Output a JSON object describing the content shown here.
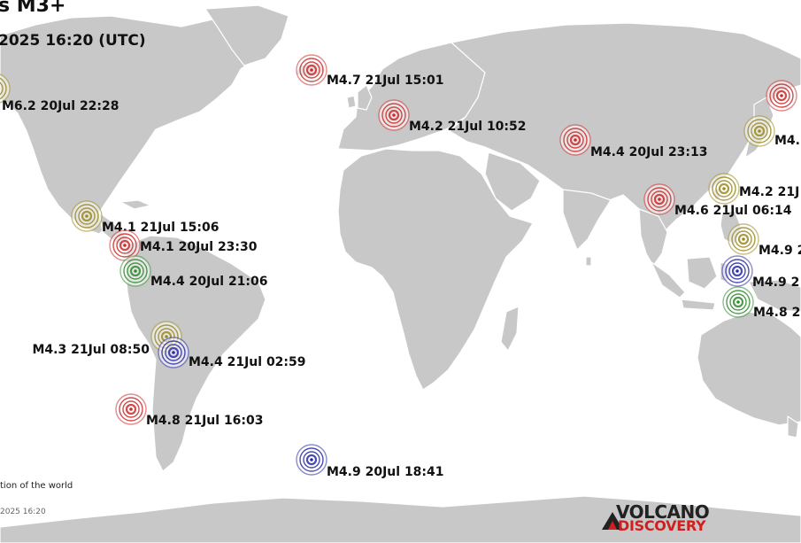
{
  "header": {
    "title": "s M3+",
    "subtitle": "2025 16:20 (UTC)"
  },
  "footer": {
    "footnote": "tion of the world",
    "timestamp": "2025 16:20"
  },
  "logo": {
    "line1": "VOLCANO",
    "line2": "DISCOVERY",
    "colors": {
      "line1": "#222222",
      "line2": "#d11f1f"
    }
  },
  "colors": {
    "ocean": "#ffffff",
    "land": "#c8c8c8",
    "quake_red": "#cc2a2a",
    "quake_olive": "#9a8a20",
    "quake_green": "#2e8a2e",
    "quake_blue": "#2a2aa8"
  },
  "quakes": [
    {
      "label": "M6.2 20Jul 22:28",
      "color": "olive"
    },
    {
      "label": "M4.7 21Jul 15:01",
      "color": "red"
    },
    {
      "label": "M4.2 21Jul 10:52",
      "color": "red"
    },
    {
      "label": "M4.4 20Jul 23:13",
      "color": "red"
    },
    {
      "label": "M4.6 21Jul 06:14",
      "color": "red"
    },
    {
      "label": "M4.2 21J",
      "color": "olive"
    },
    {
      "label": "M4.",
      "color": "olive"
    },
    {
      "label": "",
      "color": "red"
    },
    {
      "label": "M4.9 2",
      "color": "olive"
    },
    {
      "label": "M4.9 2",
      "color": "blue"
    },
    {
      "label": "M4.8 2",
      "color": "green"
    },
    {
      "label": "M4.1 21Jul 15:06",
      "color": "olive"
    },
    {
      "label": "M4.1 20Jul 23:30",
      "color": "red"
    },
    {
      "label": "M4.4 20Jul 21:06",
      "color": "green"
    },
    {
      "label": "M4.3 21Jul 08:50",
      "color": "olive"
    },
    {
      "label": "M4.4 21Jul 02:59",
      "color": "blue"
    },
    {
      "label": "M4.8 21Jul 16:03",
      "color": "red"
    },
    {
      "label": "M4.9 20Jul 18:41",
      "color": "blue"
    }
  ]
}
